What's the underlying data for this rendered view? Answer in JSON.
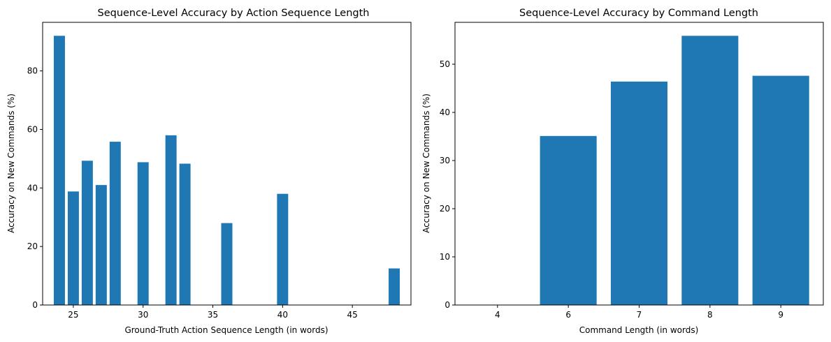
{
  "chart_data": [
    {
      "type": "bar",
      "title": "Sequence-Level Accuracy by Action Sequence Length",
      "xlabel": "Ground-Truth Action Sequence Length (in words)",
      "ylabel": "Accuracy on New Commands (%)",
      "x": [
        24,
        25,
        26,
        27,
        28,
        30,
        32,
        33,
        36,
        40,
        48
      ],
      "values": [
        92.0,
        38.8,
        49.3,
        41.0,
        55.8,
        48.8,
        58.0,
        48.3,
        28.0,
        38.0,
        12.5
      ],
      "xlim": [
        22.8,
        49.2
      ],
      "ylim": [
        0,
        96.6
      ],
      "xticks": [
        25,
        30,
        35,
        40,
        45
      ],
      "yticks": [
        0,
        20,
        40,
        60,
        80
      ],
      "bar_color": "#1f77b4",
      "grid": false
    },
    {
      "type": "bar",
      "title": "Sequence-Level Accuracy by Command Length",
      "xlabel": "Command Length (in words)",
      "ylabel": "Accuracy on New Commands (%)",
      "categories": [
        "4",
        "6",
        "7",
        "8",
        "9"
      ],
      "values": [
        0.0,
        35.1,
        46.4,
        55.9,
        47.6
      ],
      "ylim": [
        0,
        58.7
      ],
      "yticks": [
        0,
        10,
        20,
        30,
        40,
        50
      ],
      "bar_color": "#1f77b4",
      "grid": false
    }
  ]
}
